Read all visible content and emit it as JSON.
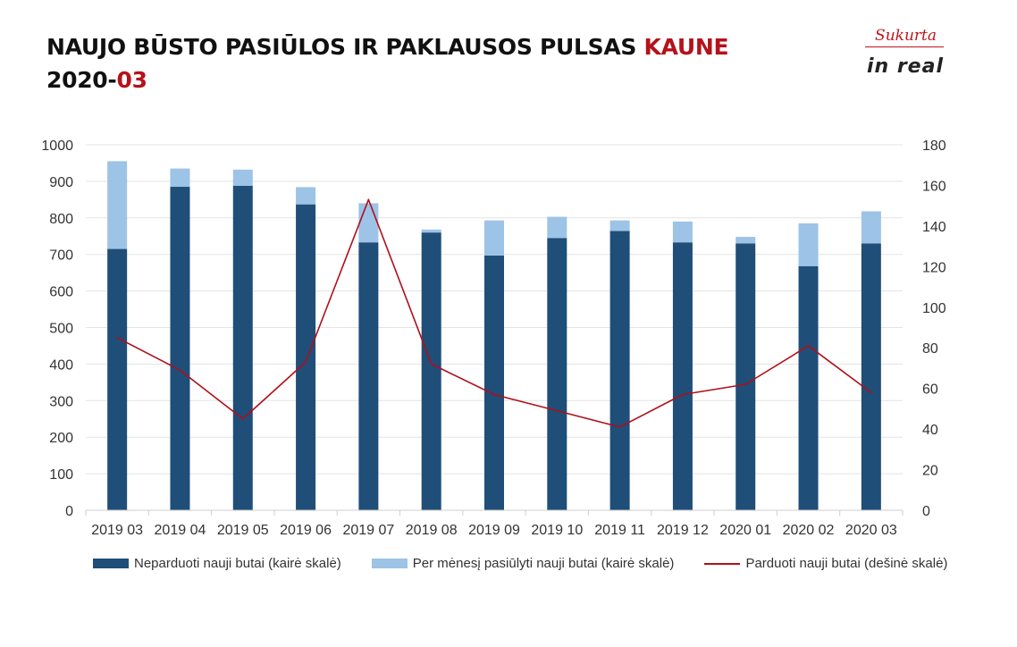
{
  "header": {
    "title_main": "NAUJO BŪSTO PASIŪLOS IR PAKLAUSOS PULSAS ",
    "title_accent": "KAUNE",
    "date_main": "2020-",
    "date_accent": "03"
  },
  "logo": {
    "script": "Sukurta",
    "brand": "in real"
  },
  "colors": {
    "dark": "#1f4e79",
    "light": "#9dc3e6",
    "line": "#b00f1a",
    "accent": "#b5121b"
  },
  "chart_data": {
    "type": "bar",
    "categories": [
      "2019 03",
      "2019 04",
      "2019 05",
      "2019 06",
      "2019 07",
      "2019 08",
      "2019 09",
      "2019 10",
      "2019 11",
      "2019 12",
      "2020 01",
      "2020 02",
      "2020 03"
    ],
    "series": [
      {
        "name": "Neparduoti nauji butai (kairė skalė)",
        "axis": "left",
        "type": "bar-stacked",
        "values": [
          715,
          885,
          888,
          837,
          733,
          760,
          697,
          745,
          764,
          733,
          730,
          668,
          730
        ]
      },
      {
        "name": "Per mėnesį pasiūlyti nauji butai (kairė skalė)",
        "axis": "left",
        "type": "bar-stacked",
        "values": [
          240,
          50,
          44,
          47,
          107,
          8,
          96,
          58,
          29,
          57,
          18,
          117,
          88
        ]
      },
      {
        "name": "Parduoti nauji butai (dešinė skalė)",
        "axis": "right",
        "type": "line",
        "values": [
          85,
          69,
          45,
          73,
          153,
          72,
          57,
          49,
          41,
          57,
          62,
          81,
          58
        ]
      }
    ],
    "y_left": {
      "min": 0,
      "max": 1000,
      "step": 100
    },
    "y_right": {
      "min": 0,
      "max": 180,
      "step": 20
    },
    "grid": true,
    "legend_position": "bottom"
  }
}
